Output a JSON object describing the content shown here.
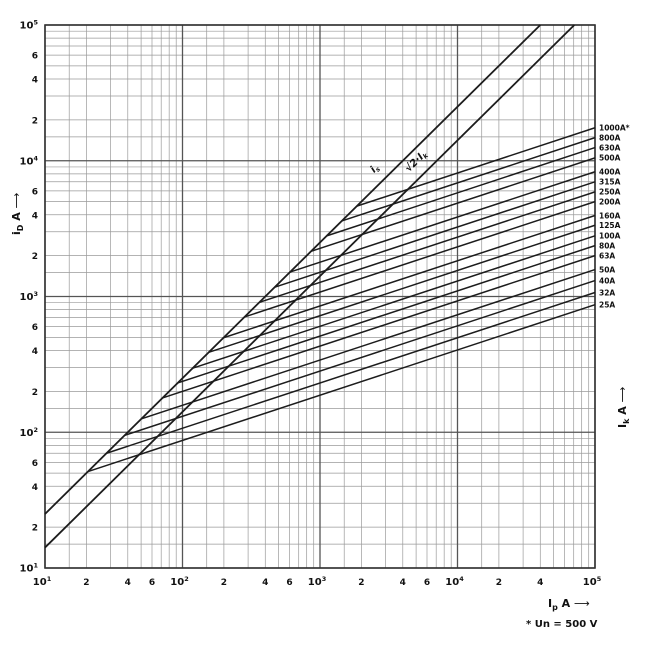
{
  "chart_data": {
    "type": "line",
    "title": "",
    "log_log": true,
    "xlim": [
      10,
      100000
    ],
    "ylim": [
      10,
      100000
    ],
    "grid": "on",
    "arrow": "⟶",
    "axes": {
      "x": {
        "base": "I",
        "sub": "p",
        "unit": "A"
      },
      "y": {
        "base": "i",
        "sub": "D",
        "unit": "A"
      },
      "right": {
        "base": "I",
        "sub": "k",
        "unit": "A"
      }
    },
    "footnote": "* Un = 500 V",
    "x_ticks": [
      {
        "v": 10,
        "t": "10",
        "s": "1"
      },
      {
        "v": 20,
        "t": "2"
      },
      {
        "v": 40,
        "t": "4"
      },
      {
        "v": 60,
        "t": "6"
      },
      {
        "v": 100,
        "t": "10",
        "s": "2"
      },
      {
        "v": 200,
        "t": "2"
      },
      {
        "v": 400,
        "t": "4"
      },
      {
        "v": 600,
        "t": "6"
      },
      {
        "v": 1000,
        "t": "10",
        "s": "3"
      },
      {
        "v": 2000,
        "t": "2"
      },
      {
        "v": 4000,
        "t": "4"
      },
      {
        "v": 6000,
        "t": "6"
      },
      {
        "v": 10000,
        "t": "10",
        "s": "4"
      },
      {
        "v": 20000,
        "t": "2"
      },
      {
        "v": 40000,
        "t": "4"
      },
      {
        "v": 100000,
        "t": "10",
        "s": "5"
      }
    ],
    "y_ticks": [
      {
        "v": 100000,
        "t": "10",
        "s": "5"
      },
      {
        "v": 60000,
        "t": "6"
      },
      {
        "v": 40000,
        "t": "4"
      },
      {
        "v": 20000,
        "t": "2"
      },
      {
        "v": 10000,
        "t": "10",
        "s": "4"
      },
      {
        "v": 6000,
        "t": "6"
      },
      {
        "v": 4000,
        "t": "4"
      },
      {
        "v": 2000,
        "t": "2"
      },
      {
        "v": 1000,
        "t": "10",
        "s": "3"
      },
      {
        "v": 600,
        "t": "6"
      },
      {
        "v": 400,
        "t": "4"
      },
      {
        "v": 200,
        "t": "2"
      },
      {
        "v": 100,
        "t": "10",
        "s": "2"
      },
      {
        "v": 60,
        "t": "6"
      },
      {
        "v": 40,
        "t": "4"
      },
      {
        "v": 20,
        "t": "2"
      },
      {
        "v": 10,
        "t": "10",
        "s": "1"
      }
    ],
    "minor_multiples": [
      1.5,
      2,
      3,
      4,
      5,
      6,
      7,
      8,
      9
    ],
    "reference_lines": [
      {
        "base": "i",
        "sub": "s",
        "factor": 2.5,
        "label_at_x": 3000
      },
      {
        "base": "√2·I",
        "sub": "k",
        "factor": 1.414,
        "label_at_x": 6000
      }
    ],
    "fan_slope": 0.3333,
    "fuse_lines": [
      {
        "rating": "1000A*",
        "cutoff_at_100kA": 17500
      },
      {
        "rating": "800A",
        "cutoff_at_100kA": 14800
      },
      {
        "rating": "630A",
        "cutoff_at_100kA": 12500
      },
      {
        "rating": "500A",
        "cutoff_at_100kA": 10500
      },
      {
        "rating": "400A",
        "cutoff_at_100kA": 8300
      },
      {
        "rating": "315A",
        "cutoff_at_100kA": 7000
      },
      {
        "rating": "250A",
        "cutoff_at_100kA": 5900
      },
      {
        "rating": "200A",
        "cutoff_at_100kA": 5000
      },
      {
        "rating": "160A",
        "cutoff_at_100kA": 3950
      },
      {
        "rating": "125A",
        "cutoff_at_100kA": 3350
      },
      {
        "rating": "100A",
        "cutoff_at_100kA": 2800
      },
      {
        "rating": "80A",
        "cutoff_at_100kA": 2370
      },
      {
        "rating": "63A",
        "cutoff_at_100kA": 2000
      },
      {
        "rating": "50A",
        "cutoff_at_100kA": 1580
      },
      {
        "rating": "40A",
        "cutoff_at_100kA": 1310
      },
      {
        "rating": "32A",
        "cutoff_at_100kA": 1070
      },
      {
        "rating": "25A",
        "cutoff_at_100kA": 870
      }
    ],
    "colors": {
      "curve": "#1c1c1c",
      "grid_minor": "#9a9a9a",
      "grid_major": "#555555",
      "border": "#333333",
      "text": "#111111"
    }
  }
}
